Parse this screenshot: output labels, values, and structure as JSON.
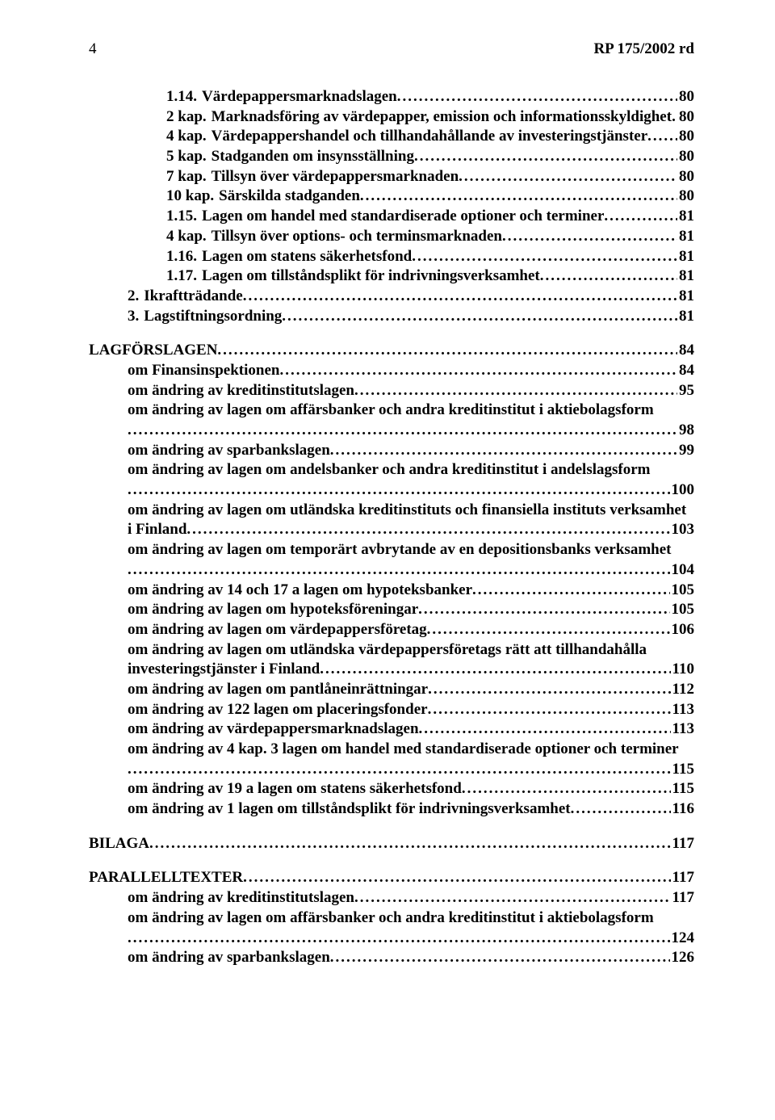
{
  "header": {
    "page_number": "4",
    "doc_id": "RP 175/2002 rd"
  },
  "leader_dots": "..................................................................................................................................................................................",
  "toc": [
    {
      "indent": 2,
      "num": "1.14.",
      "text": "Värdepappersmarknadslagen",
      "page": "80"
    },
    {
      "indent": 2,
      "num": "2 kap.",
      "text": "Marknadsföring av värdepapper, emission och informationsskyldighet",
      "page": "80"
    },
    {
      "indent": 2,
      "num": "4 kap.",
      "text": "Värdepappershandel och tillhandahållande av investeringstjänster",
      "page": "80"
    },
    {
      "indent": 2,
      "num": "5 kap.",
      "text": "Stadganden om insynsställning",
      "page": "80"
    },
    {
      "indent": 2,
      "num": "7 kap.",
      "text": "Tillsyn över värdepappersmarknaden",
      "page": "80"
    },
    {
      "indent": 2,
      "num": "10 kap.",
      "text": "Särskilda stadganden",
      "page": "80"
    },
    {
      "indent": 2,
      "num": "1.15.",
      "text": "Lagen om handel med standardiserade optioner och terminer",
      "page": "81"
    },
    {
      "indent": 2,
      "num": "4 kap.",
      "text": "Tillsyn över options- och terminsmarknaden",
      "page": "81"
    },
    {
      "indent": 2,
      "num": "1.16.",
      "text": "Lagen om statens säkerhetsfond",
      "page": "81"
    },
    {
      "indent": 2,
      "num": "1.17.",
      "text": "Lagen om tillståndsplikt för indrivningsverksamhet",
      "page": "81"
    },
    {
      "indent": 1,
      "num": "2.",
      "text": "Ikraftträdande",
      "page": "81"
    },
    {
      "indent": 1,
      "num": "3.",
      "text": "Lagstiftningsordning",
      "page": "81"
    },
    {
      "spacer": true
    },
    {
      "indent": 0,
      "num": "",
      "text": "LAGFÖRSLAGEN",
      "page": "84"
    },
    {
      "indent": 1,
      "num": "",
      "text": "om Finansinspektionen",
      "page": "84"
    },
    {
      "indent": 1,
      "num": "",
      "text": "om ändring av kreditinstitutslagen",
      "page": "95"
    },
    {
      "indent": 1,
      "num": "",
      "text": "om ändring av lagen om affärsbanker och andra kreditinstitut i aktiebolagsform",
      "page": "98",
      "wrap_leader_below": true
    },
    {
      "indent": 1,
      "num": "",
      "text": "om ändring av sparbankslagen",
      "page": "99"
    },
    {
      "indent": 1,
      "num": "",
      "text": "om ändring av lagen om andelsbanker och andra kreditinstitut i andelslagsform",
      "page": "100",
      "wrap_leader_below": true
    },
    {
      "indent": 1,
      "num": "",
      "text": "om ändring av lagen om utländska kreditinstituts och finansiella instituts verksamhet i Finland",
      "page": "103",
      "wrap_two_lines": true
    },
    {
      "indent": 1,
      "num": "",
      "text": "om ändring av lagen om temporärt avbrytande av en depositionsbanks verksamhet",
      "page": "104",
      "wrap_two_lines": true
    },
    {
      "indent": 1,
      "num": "",
      "text": "om ändring av 14 och 17 a lagen om hypoteksbanker",
      "page": "105"
    },
    {
      "indent": 1,
      "num": "",
      "text": "om ändring av lagen om hypoteksföreningar",
      "page": "105"
    },
    {
      "indent": 1,
      "num": "",
      "text": "om ändring av lagen om värdepappersföretag",
      "page": "106"
    },
    {
      "indent": 1,
      "num": "",
      "text": "om ändring av lagen om utländska värdepappersföretags rätt att tillhandahålla investeringstjänster i Finland",
      "page": "110",
      "wrap_two_lines": true
    },
    {
      "indent": 1,
      "num": "",
      "text": "om ändring av lagen om pantlåneinrättningar",
      "page": "112"
    },
    {
      "indent": 1,
      "num": "",
      "text": "om ändring av 122 lagen om placeringsfonder",
      "page": "113"
    },
    {
      "indent": 1,
      "num": "",
      "text": "om ändring av värdepappersmarknadslagen",
      "page": "113"
    },
    {
      "indent": 1,
      "num": "",
      "text": "om ändring av 4 kap. 3 lagen om handel med standardiserade optioner och terminer",
      "page": "115",
      "wrap_two_lines": true
    },
    {
      "indent": 1,
      "num": "",
      "text": "om ändring av 19 a lagen om statens säkerhetsfond",
      "page": "115"
    },
    {
      "indent": 1,
      "num": "",
      "text": "om ändring av 1 lagen om tillståndsplikt för indrivningsverksamhet",
      "page": "116"
    },
    {
      "spacer": true
    },
    {
      "indent": 0,
      "num": "",
      "text": "BILAGA",
      "page": "117"
    },
    {
      "spacer": true
    },
    {
      "indent": 0,
      "num": "",
      "text": "PARALLELLTEXTER",
      "page": "117"
    },
    {
      "indent": 1,
      "num": "",
      "text": "om ändring av kreditinstitutslagen",
      "page": "117"
    },
    {
      "indent": 1,
      "num": "",
      "text": "om ändring av lagen om affärsbanker och andra kreditinstitut i aktiebolagsform",
      "page": "124",
      "wrap_leader_below": true
    },
    {
      "indent": 1,
      "num": "",
      "text": "om ändring av sparbankslagen",
      "page": "126"
    }
  ]
}
